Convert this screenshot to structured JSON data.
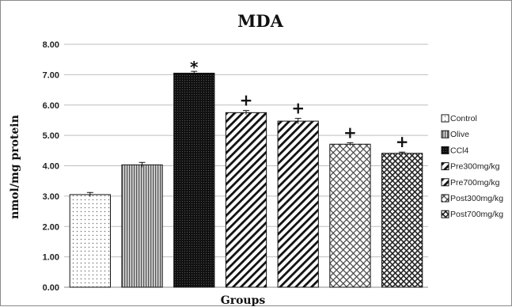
{
  "chart_data": {
    "type": "bar",
    "title": "MDA",
    "xlabel": "Groups",
    "ylabel": "nmol/mg protein",
    "ylim": [
      0,
      8
    ],
    "yticks": [
      "0.00",
      "1.00",
      "2.00",
      "3.00",
      "4.00",
      "5.00",
      "6.00",
      "7.00",
      "8.00"
    ],
    "grid": true,
    "legend_position": "right",
    "categories": [
      "Control",
      "Olive",
      "CCl4",
      "Pre300mg/kg",
      "Pre700mg/kg",
      "Post300mg/kg",
      "Post700mg/kg"
    ],
    "values": [
      3.05,
      4.03,
      7.05,
      5.75,
      5.47,
      4.71,
      4.41
    ],
    "errors": [
      0.07,
      0.08,
      0.06,
      0.07,
      0.09,
      0.05,
      0.04
    ],
    "annotations": [
      "",
      "",
      "*",
      "+",
      "+",
      "+",
      "+"
    ],
    "patterns": [
      "dots",
      "vertical",
      "dense",
      "diag-right",
      "diag-right",
      "crosshatch",
      "crosshatch-dense"
    ]
  }
}
